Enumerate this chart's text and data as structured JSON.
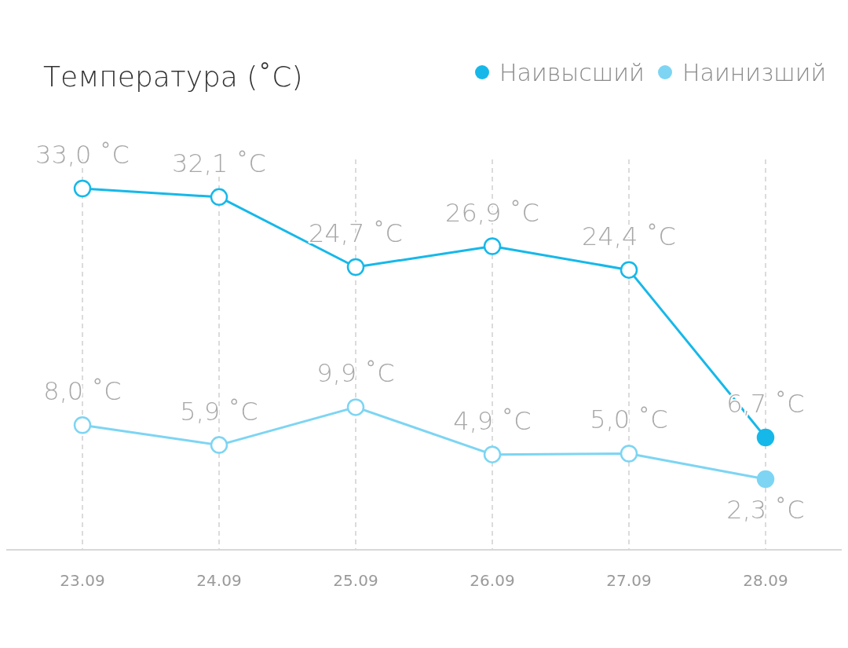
{
  "chart_data": {
    "type": "line",
    "title": "Температура (˚C)",
    "categories": [
      "23.09",
      "24.09",
      "25.09",
      "26.09",
      "27.09",
      "28.09"
    ],
    "series": [
      {
        "name": "Наивысший",
        "color": "#16b8e9",
        "values": [
          33.0,
          32.1,
          24.7,
          26.9,
          24.4,
          6.7
        ],
        "value_labels": [
          "33,0 ˚C",
          "32,1 ˚C",
          "24,7 ˚C",
          "26,9 ˚C",
          "24,4 ˚C",
          "6,7 ˚C"
        ]
      },
      {
        "name": "Наинизший",
        "color": "#7dd5f3",
        "values": [
          8.0,
          5.9,
          9.9,
          4.9,
          5.0,
          2.3
        ],
        "value_labels": [
          "8,0 ˚C",
          "5,9 ˚C",
          "9,9 ˚C",
          "4,9 ˚C",
          "5,0 ˚C",
          "2,3 ˚C"
        ]
      }
    ],
    "grid": "x",
    "legend": "top right",
    "marker": "circle",
    "line_style": "solid"
  }
}
